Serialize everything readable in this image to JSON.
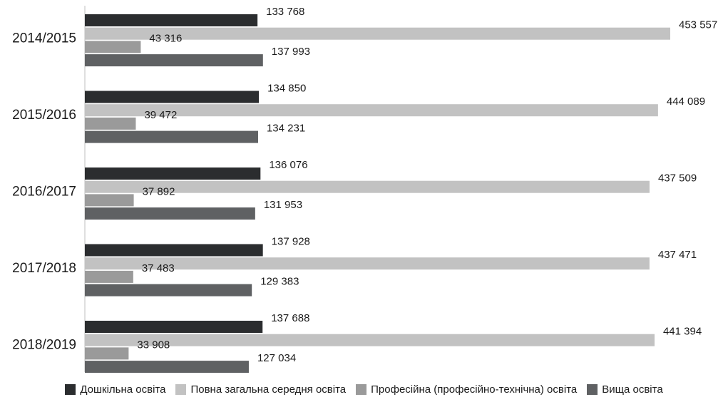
{
  "chart_data": {
    "type": "bar",
    "orientation": "horizontal",
    "categories": [
      "2014/2015",
      "2015/2016",
      "2016/2017",
      "2017/2018",
      "2018/2019"
    ],
    "series": [
      {
        "name": "Дошкільна освіта",
        "color": "#2b2d2f",
        "values": [
          133768,
          134850,
          136076,
          137928,
          137688
        ],
        "labels": [
          "133 768",
          "134 850",
          "136 076",
          "137 928",
          "137 688"
        ]
      },
      {
        "name": "Повна загальна середня освіта",
        "color": "#c2c2c2",
        "values": [
          453557,
          444089,
          437509,
          437471,
          441394
        ],
        "labels": [
          "453 557",
          "444 089",
          "437 509",
          "437 471",
          "441 394"
        ]
      },
      {
        "name": "Професійна (професійно-технічна) освіта",
        "color": "#9a9a9a",
        "values": [
          43316,
          39472,
          37892,
          37483,
          33908
        ],
        "labels": [
          "43 316",
          "39 472",
          "37 892",
          "37 483",
          "33 908"
        ]
      },
      {
        "name": "Вища освіта",
        "color": "#5f6163",
        "values": [
          137993,
          134231,
          131953,
          129383,
          127034
        ],
        "labels": [
          "137 993",
          "134 231",
          "131 953",
          "129 383",
          "127 034"
        ]
      }
    ],
    "xlim": [
      0,
      460000
    ],
    "grid": false,
    "legend": "bottom"
  }
}
